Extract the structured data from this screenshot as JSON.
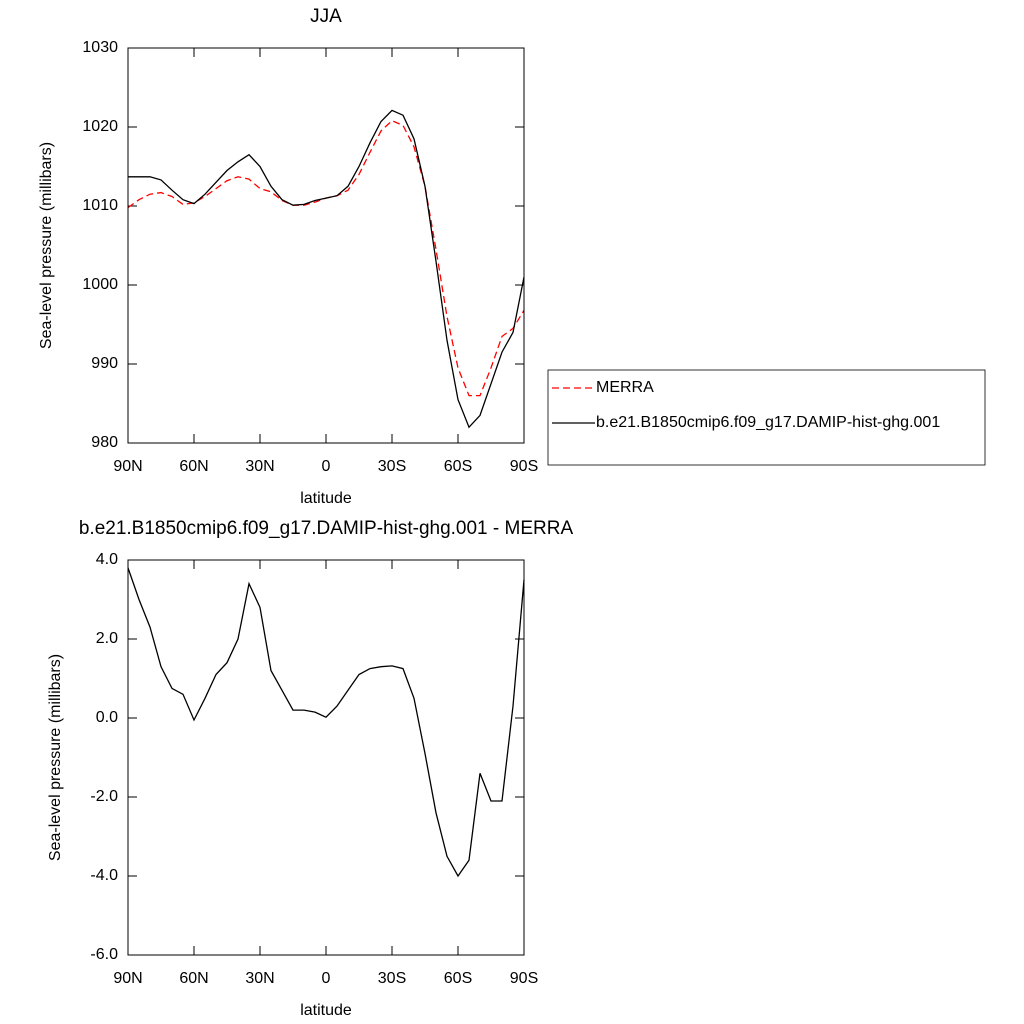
{
  "chart_data": [
    {
      "type": "line",
      "title": "JJA",
      "xlabel": "latitude",
      "ylabel": "Sea-level pressure (millibars)",
      "x": [
        90,
        85,
        80,
        75,
        70,
        65,
        60,
        55,
        50,
        45,
        40,
        35,
        30,
        25,
        20,
        15,
        10,
        5,
        0,
        -5,
        -10,
        -15,
        -20,
        -25,
        -30,
        -35,
        -40,
        -45,
        -50,
        -55,
        -60,
        -65,
        -70,
        -75,
        -80,
        -85,
        -90
      ],
      "xlim": [
        90,
        -90
      ],
      "xticks": [
        {
          "value": 90,
          "label": "90N"
        },
        {
          "value": 60,
          "label": "60N"
        },
        {
          "value": 30,
          "label": "30N"
        },
        0,
        {
          "value": -30,
          "label": "30S"
        },
        {
          "value": -60,
          "label": "60S"
        },
        {
          "value": -90,
          "label": "90S"
        }
      ],
      "ylim": [
        980,
        1030
      ],
      "yticks": [
        980,
        990,
        1000,
        1010,
        1020,
        1030
      ],
      "legend": "right",
      "series": [
        {
          "name": "MERRA",
          "color": "#ff0000",
          "dashed": true,
          "values": [
            1009.8,
            1010.8,
            1011.5,
            1011.7,
            1011.2,
            1010.2,
            1010.4,
            1011.2,
            1012.2,
            1013.2,
            1013.7,
            1013.4,
            1012.2,
            1011.8,
            1010.7,
            1010.1,
            1010.1,
            1010.5,
            1011.0,
            1011.3,
            1012,
            1014,
            1016.8,
            1019.5,
            1020.8,
            1020.2,
            1017.5,
            1012.5,
            1004.5,
            996,
            989.5,
            986,
            986,
            989.5,
            993.5,
            994.5,
            996.8
          ]
        },
        {
          "name": "b.e21.B1850cmip6.f09_g17.DAMIP-hist-ghg.001",
          "color": "#000000",
          "dashed": false,
          "values": [
            1013.7,
            1013.7,
            1013.7,
            1013.3,
            1012,
            1010.8,
            1010.3,
            1011.5,
            1013,
            1014.5,
            1015.6,
            1016.5,
            1015,
            1012.5,
            1010.8,
            1010.1,
            1010.2,
            1010.7,
            1011,
            1011.3,
            1012.5,
            1015,
            1018,
            1020.7,
            1022.1,
            1021.5,
            1018.5,
            1012.5,
            1003,
            993,
            985.5,
            982,
            983.5,
            987.5,
            991.5,
            994,
            1001
          ]
        }
      ]
    },
    {
      "type": "line",
      "title": "b.e21.B1850cmip6.f09_g17.DAMIP-hist-ghg.001 - MERRA",
      "xlabel": "latitude",
      "ylabel": "Sea-level pressure (millibars)",
      "x": [
        90,
        85,
        80,
        75,
        70,
        65,
        60,
        55,
        50,
        45,
        40,
        35,
        30,
        25,
        20,
        15,
        10,
        5,
        0,
        -5,
        -10,
        -15,
        -20,
        -25,
        -30,
        -35,
        -40,
        -45,
        -50,
        -55,
        -60,
        -65,
        -70,
        -75,
        -80,
        -85,
        -90
      ],
      "xlim": [
        90,
        -90
      ],
      "xticks": [
        {
          "value": 90,
          "label": "90N"
        },
        {
          "value": 60,
          "label": "60N"
        },
        {
          "value": 30,
          "label": "30N"
        },
        0,
        {
          "value": -30,
          "label": "30S"
        },
        {
          "value": -60,
          "label": "60S"
        },
        {
          "value": -90,
          "label": "90S"
        }
      ],
      "ylim": [
        -6,
        4
      ],
      "yticks": [
        {
          "value": -6,
          "label": "-6.0"
        },
        {
          "value": -4,
          "label": "-4.0"
        },
        {
          "value": -2,
          "label": "-2.0"
        },
        {
          "value": 0,
          "label": "0.0"
        },
        {
          "value": 2,
          "label": "2.0"
        },
        {
          "value": 4,
          "label": "4.0"
        }
      ],
      "series": [
        {
          "color": "#000000",
          "dashed": false,
          "values": [
            3.8,
            3.0,
            2.3,
            1.3,
            0.75,
            0.6,
            -0.05,
            0.5,
            1.1,
            1.4,
            2.0,
            3.4,
            2.8,
            1.2,
            0.7,
            0.2,
            0.2,
            0.15,
            0.02,
            0.3,
            0.7,
            1.1,
            1.25,
            1.3,
            1.32,
            1.25,
            0.5,
            -0.9,
            -2.4,
            -3.5,
            -4.0,
            -3.6,
            -1.4,
            -2.1,
            -2.1,
            0.3,
            3.5
          ]
        }
      ]
    }
  ]
}
